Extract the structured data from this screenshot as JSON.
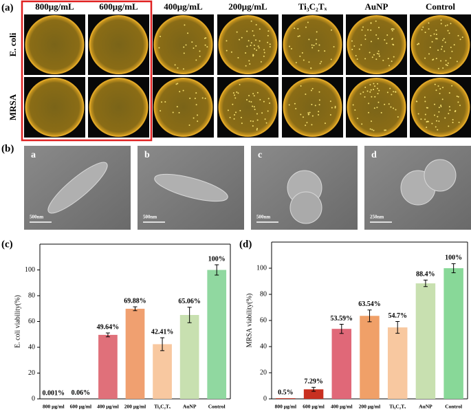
{
  "figure": {
    "panel_labels": [
      "(a)",
      "(b)",
      "(c)",
      "(d)"
    ],
    "plates": {
      "columns": [
        "800μg/mL",
        "600μg/mL",
        "400μg/mL",
        "200μg/mL",
        "Ti₃C₂Tₓ",
        "AuNP",
        "Control"
      ],
      "rows": [
        "E. coli",
        "MRSA"
      ]
    },
    "sem": [
      {
        "label": "a",
        "scale": "500nm"
      },
      {
        "label": "b",
        "scale": "500nm"
      },
      {
        "label": "c",
        "scale": "500nm"
      },
      {
        "label": "d",
        "scale": "250nm"
      }
    ]
  },
  "chart_data": [
    {
      "type": "bar",
      "ylabel": "E. coli viability(%)",
      "categories": [
        "800 μg/ml",
        "600 μg/ml",
        "400 μg/ml",
        "200 μg/ml",
        "Ti₃C₂Tₓ",
        "AuNP",
        "Control"
      ],
      "values": [
        0.001,
        0.06,
        49.64,
        69.88,
        42.41,
        65.06,
        100
      ],
      "errors": [
        0,
        0,
        1.5,
        1.5,
        5,
        6,
        4
      ],
      "value_labels": [
        "0.001%",
        "0.06%",
        "49.64%",
        "69.88%",
        "42.41%",
        "65.06%",
        "100%"
      ],
      "colors": [
        "#e0707a",
        "#e0707a",
        "#e0707a",
        "#f0a070",
        "#f8c8a0",
        "#c8e0b0",
        "#90d8a0"
      ],
      "ylim": [
        0,
        120
      ],
      "yticks": [
        0,
        20,
        40,
        60,
        80,
        100
      ]
    },
    {
      "type": "bar",
      "ylabel": "MRSA viability(%)",
      "categories": [
        "800 μg/ml",
        "600 μg/ml",
        "400 μg/ml",
        "200 μg/ml",
        "Ti₃C₂Tₓ",
        "AuNP",
        "Control"
      ],
      "values": [
        0.5,
        7.29,
        53.59,
        63.54,
        54.7,
        88.4,
        100
      ],
      "errors": [
        0,
        1.5,
        3.5,
        4.5,
        4.5,
        2.5,
        3.5
      ],
      "value_labels": [
        "0.5%",
        "7.29%",
        "53.59%",
        "63.54%",
        "54.7%",
        "88.4%",
        "100%"
      ],
      "colors": [
        "#c83020",
        "#c83020",
        "#e06878",
        "#f0a068",
        "#f8c8a0",
        "#c8e0b0",
        "#88d898"
      ],
      "ylim": [
        0,
        120
      ],
      "yticks": [
        0,
        20,
        40,
        60,
        80,
        100
      ]
    }
  ]
}
